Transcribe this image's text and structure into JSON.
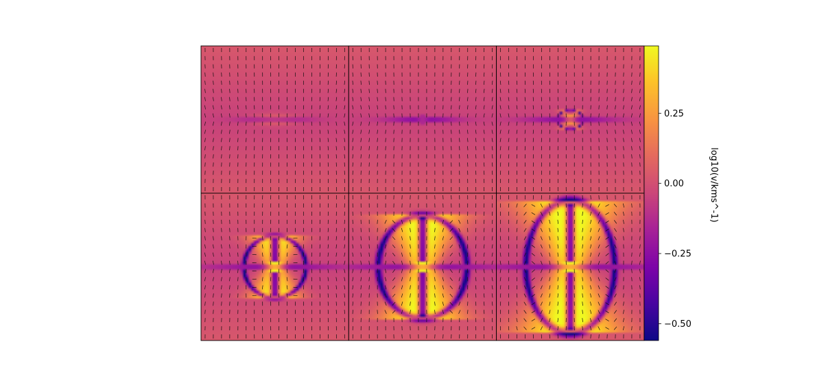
{
  "chart_data": {
    "type": "heatmap",
    "description_layout": "grid",
    "grid": {
      "rows": 2,
      "cols": 3
    },
    "colormap": "plasma",
    "overlay": "quiver (velocity vectors)",
    "panels": [
      {
        "row": 0,
        "col": 0,
        "max_extent": 0.02,
        "features": "thin low-velocity band along the midplane"
      },
      {
        "row": 0,
        "col": 1,
        "max_extent": 0.05,
        "features": "weak midplane band with slight central enhancement"
      },
      {
        "row": 0,
        "col": 2,
        "max_extent": 0.13,
        "features": "small bipolar bubble at center"
      },
      {
        "row": 1,
        "col": 0,
        "max_extent": 0.42,
        "features": "bipolar lobes with low-velocity shells"
      },
      {
        "row": 1,
        "col": 1,
        "max_extent": 0.7,
        "features": "broad bipolar outflow with shell fragments"
      },
      {
        "row": 1,
        "col": 2,
        "max_extent": 0.9,
        "features": "fully developed bipolar outflow"
      }
    ],
    "colorbar": {
      "label": "log10(v/kms^-1)",
      "range": [
        -0.56,
        0.49
      ],
      "ticks": [
        0.25,
        0.0,
        -0.25,
        -0.5
      ],
      "tick_labels": [
        "0.25",
        "0.00",
        "−0.25",
        "−0.50"
      ]
    }
  }
}
